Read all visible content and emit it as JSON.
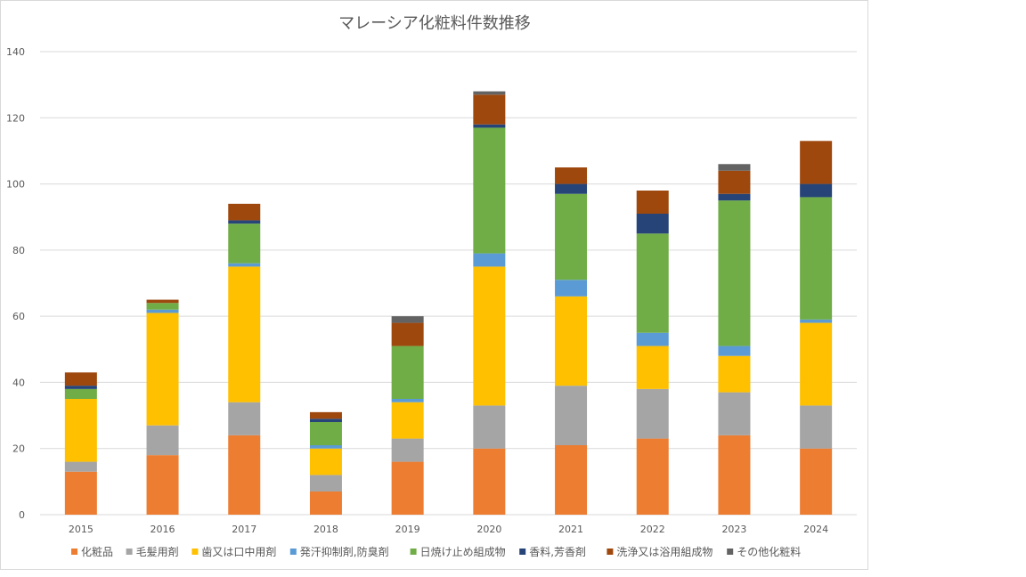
{
  "chart_data": {
    "type": "bar",
    "stacked": true,
    "title": "マレーシア化粧料件数推移",
    "xlabel": "",
    "ylabel": "",
    "ylim": [
      0,
      140
    ],
    "yticks": [
      0,
      20,
      40,
      60,
      80,
      100,
      120,
      140
    ],
    "grid": true,
    "legend_position": "bottom",
    "categories": [
      "2015",
      "2016",
      "2017",
      "2018",
      "2019",
      "2020",
      "2021",
      "2022",
      "2023",
      "2024"
    ],
    "series": [
      {
        "name": "化粧品",
        "color": "#ED7D31",
        "values": [
          13,
          18,
          24,
          7,
          16,
          20,
          21,
          23,
          24,
          20
        ]
      },
      {
        "name": "毛髪用剤",
        "color": "#A5A5A5",
        "values": [
          3,
          9,
          10,
          5,
          7,
          13,
          18,
          15,
          13,
          13
        ]
      },
      {
        "name": "歯又は口中用剤",
        "color": "#FFC000",
        "values": [
          19,
          34,
          41,
          8,
          11,
          42,
          27,
          13,
          11,
          25
        ]
      },
      {
        "name": "発汗抑制剤,防臭剤",
        "color": "#5B9BD5",
        "values": [
          0,
          1,
          1,
          1,
          1,
          4,
          5,
          4,
          3,
          1
        ]
      },
      {
        "name": "日焼け止め組成物",
        "color": "#70AD47",
        "values": [
          3,
          2,
          12,
          7,
          16,
          38,
          26,
          30,
          44,
          37
        ]
      },
      {
        "name": "香料,芳香剤",
        "color": "#264478",
        "values": [
          1,
          0,
          1,
          1,
          0,
          1,
          3,
          6,
          2,
          4
        ]
      },
      {
        "name": "洗浄又は浴用組成物",
        "color": "#9E480E",
        "values": [
          4,
          1,
          5,
          2,
          7,
          9,
          5,
          7,
          7,
          13
        ]
      },
      {
        "name": "その他化粧料",
        "color": "#636363",
        "values": [
          0,
          0,
          0,
          0,
          2,
          1,
          0,
          0,
          2,
          0
        ]
      }
    ]
  }
}
